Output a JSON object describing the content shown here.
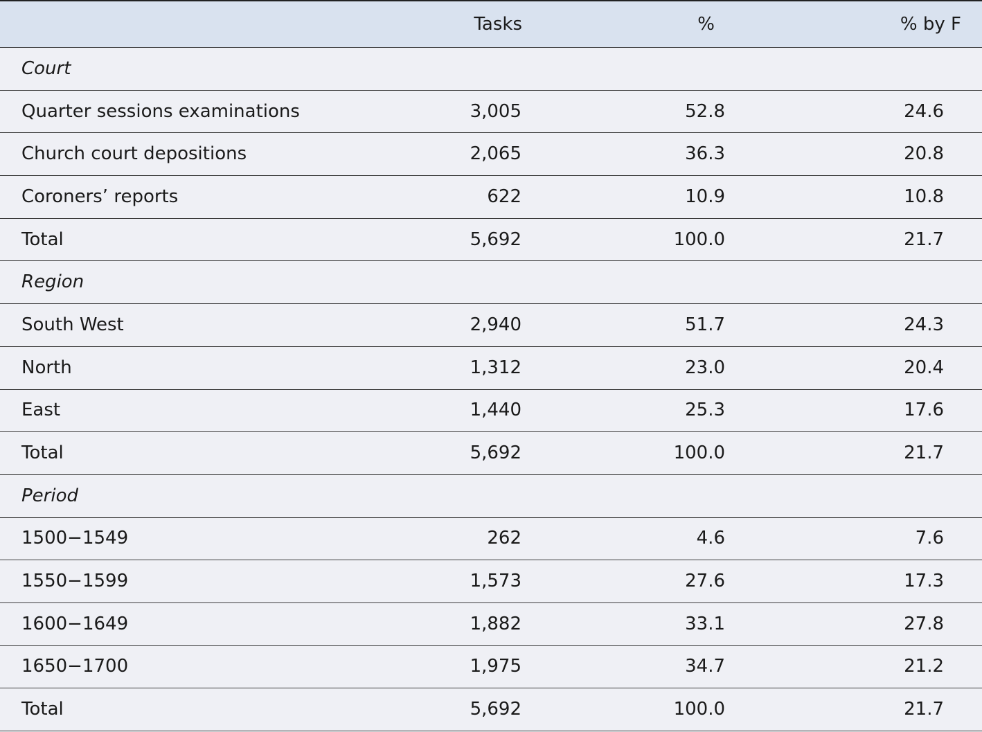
{
  "table": {
    "columns": [
      "Tasks",
      "%",
      "% by F"
    ],
    "sections": [
      {
        "title": "Court",
        "rows": [
          [
            "Quarter sessions examinations",
            "3,005",
            "52.8",
            "24.6"
          ],
          [
            "Church court depositions",
            "2,065",
            "36.3",
            "20.8"
          ],
          [
            "Coroners’ reports",
            "622",
            "10.9",
            "10.8"
          ],
          [
            "Total",
            "5,692",
            "100.0",
            "21.7"
          ]
        ]
      },
      {
        "title": "Region",
        "rows": [
          [
            "South West",
            "2,940",
            "51.7",
            "24.3"
          ],
          [
            "North",
            "1,312",
            "23.0",
            "20.4"
          ],
          [
            "East",
            "1,440",
            "25.3",
            "17.6"
          ],
          [
            "Total",
            "5,692",
            "100.0",
            "21.7"
          ]
        ]
      },
      {
        "title": "Period",
        "rows": [
          [
            "1500−1549",
            "262",
            "4.6",
            "7.6"
          ],
          [
            "1550−1599",
            "1,573",
            "27.6",
            "17.3"
          ],
          [
            "1600−1649",
            "1,882",
            "33.1",
            "27.8"
          ],
          [
            "1650−1700",
            "1,975",
            "34.7",
            "21.2"
          ],
          [
            "Total",
            "5,692",
            "100.0",
            "21.7"
          ]
        ]
      }
    ]
  }
}
